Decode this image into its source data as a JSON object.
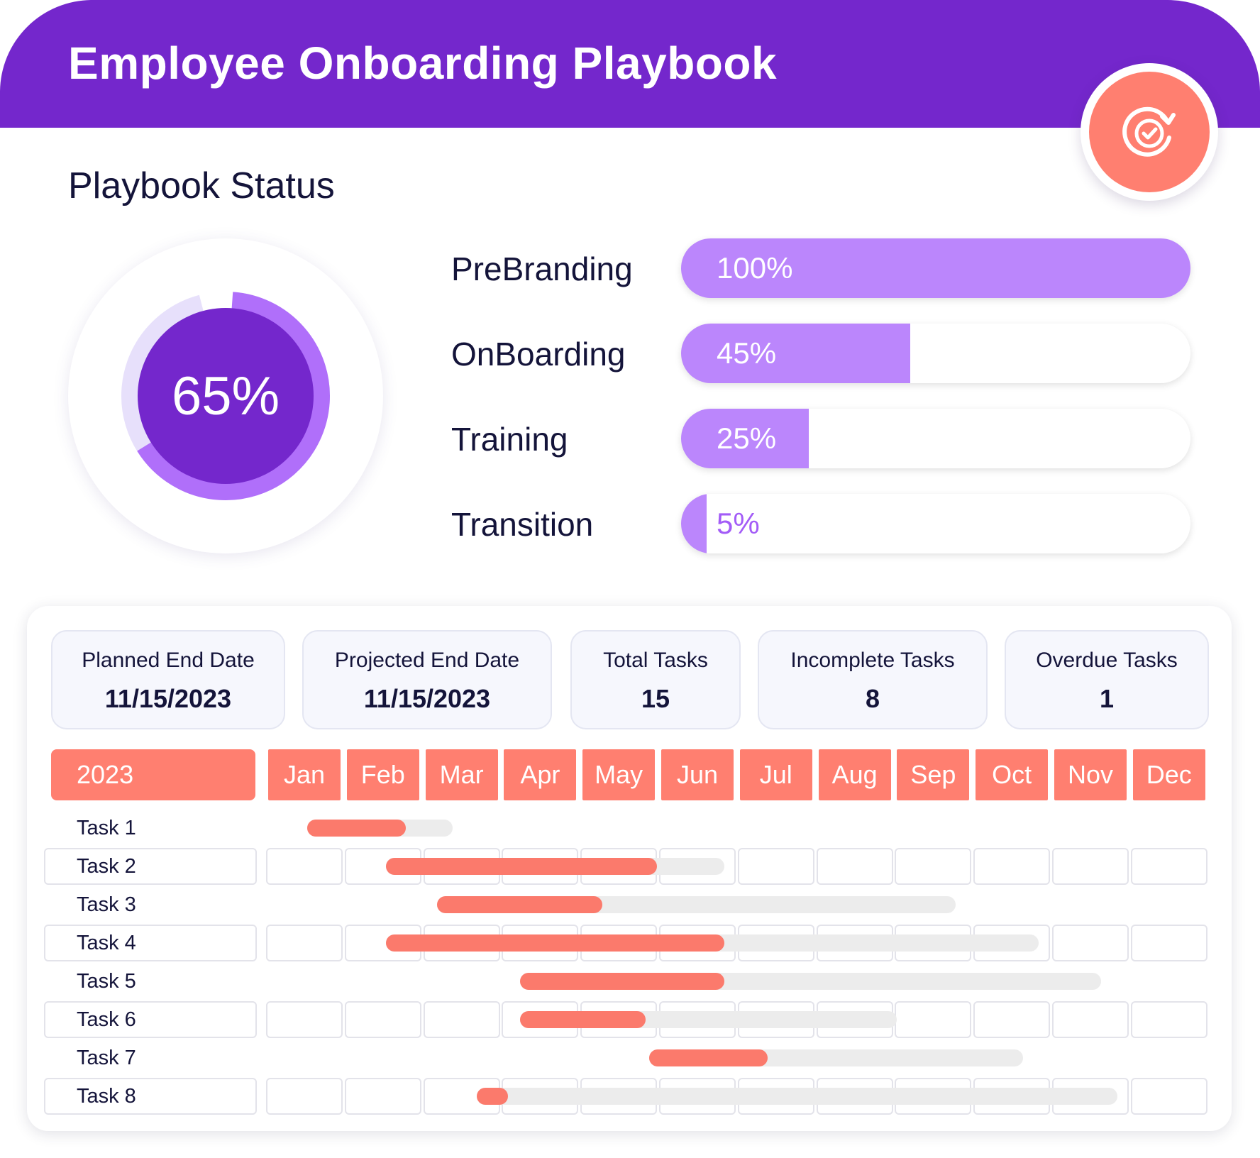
{
  "header": {
    "title": "Employee Onboarding Playbook"
  },
  "badge": {
    "icon": "target-refresh-icon",
    "color": "#ff7f70"
  },
  "status": {
    "title": "Playbook Status",
    "overall_percent_label": "65%",
    "overall_percent": 65,
    "phases": [
      {
        "label": "PreBranding",
        "percent": 100,
        "percent_label": "100%"
      },
      {
        "label": "OnBoarding",
        "percent": 45,
        "percent_label": "45%"
      },
      {
        "label": "Training",
        "percent": 25,
        "percent_label": "25%"
      },
      {
        "label": "Transition",
        "percent": 5,
        "percent_label": "5%"
      }
    ]
  },
  "stats": [
    {
      "label": "Planned End Date",
      "value": "11/15/2023"
    },
    {
      "label": "Projected End Date",
      "value": "11/15/2023"
    },
    {
      "label": "Total Tasks",
      "value": "15"
    },
    {
      "label": "Incomplete Tasks",
      "value": "8"
    },
    {
      "label": "Overdue Tasks",
      "value": "1"
    }
  ],
  "gantt": {
    "year": "2023",
    "months": [
      "Jan",
      "Feb",
      "Mar",
      "Apr",
      "May",
      "Jun",
      "Jul",
      "Aug",
      "Sep",
      "Oct",
      "Nov",
      "Dec"
    ],
    "tasks": [
      {
        "label": "Task 1",
        "start": 0.5,
        "end": 2.35,
        "progress_end": 1.75
      },
      {
        "label": "Task 2",
        "start": 1.5,
        "end": 5.8,
        "progress_end": 4.95
      },
      {
        "label": "Task 3",
        "start": 2.15,
        "end": 8.75,
        "progress_end": 4.25
      },
      {
        "label": "Task 4",
        "start": 1.5,
        "end": 9.8,
        "progress_end": 5.8
      },
      {
        "label": "Task 5",
        "start": 3.2,
        "end": 10.6,
        "progress_end": 5.8
      },
      {
        "label": "Task 6",
        "start": 3.2,
        "end": 8.0,
        "progress_end": 4.8
      },
      {
        "label": "Task 7",
        "start": 4.85,
        "end": 9.6,
        "progress_end": 6.35
      },
      {
        "label": "Task 8",
        "start": 2.65,
        "end": 10.8,
        "progress_end": 3.05
      }
    ]
  },
  "colors": {
    "brand_purple": "#7427cc",
    "progress_purple": "#bb86fc",
    "donut_track": "#e7e0fb",
    "coral": "#ff7f70",
    "bar_track": "#ececec"
  }
}
